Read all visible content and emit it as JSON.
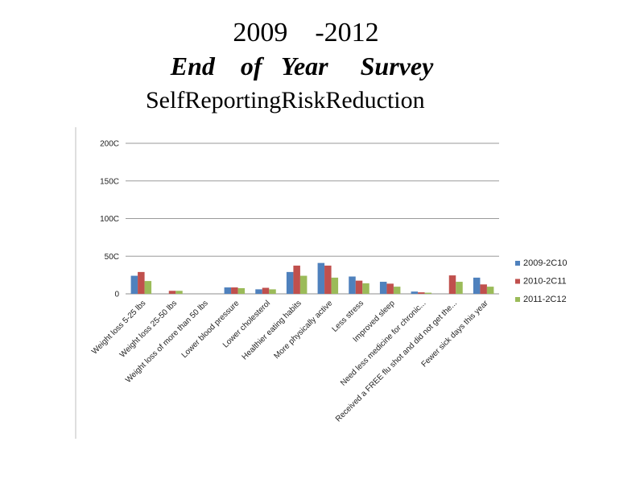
{
  "title_line1": "2009    -2012",
  "title_line2": "End    of   Year     Survey",
  "title_line3": "SelfReportingRiskReduction",
  "chart_data": {
    "type": "bar",
    "categories": [
      "Weight loss 5-25 lbs",
      "Weight loss 25-50 lbs",
      "Weight loss of more than 50 lbs",
      "Lower blood pressure",
      "Lower cholesterol",
      "Healthier eating habits",
      "More physically active",
      "Less stress",
      "Improved sleep",
      "Need less medicine for chronic...",
      "Received a FREE flu shot and did not get the...",
      "Fewer sick days this year"
    ],
    "series": [
      {
        "name": "2009-2C10",
        "color": "#4F81BD",
        "values": [
          240,
          0,
          0,
          85,
          60,
          290,
          410,
          230,
          160,
          30,
          0,
          215
        ]
      },
      {
        "name": "2010-2C11",
        "color": "#C0504D",
        "values": [
          290,
          40,
          0,
          85,
          80,
          375,
          375,
          175,
          135,
          20,
          245,
          125
        ]
      },
      {
        "name": "2011-2C12",
        "color": "#9BBB59",
        "values": [
          170,
          40,
          0,
          75,
          60,
          240,
          215,
          140,
          95,
          15,
          160,
          95
        ]
      }
    ],
    "yticks": [
      "0",
      "50C",
      "100C",
      "150C",
      "200C"
    ],
    "ylim": [
      0,
      2000
    ],
    "grid": true,
    "legend": "right"
  }
}
